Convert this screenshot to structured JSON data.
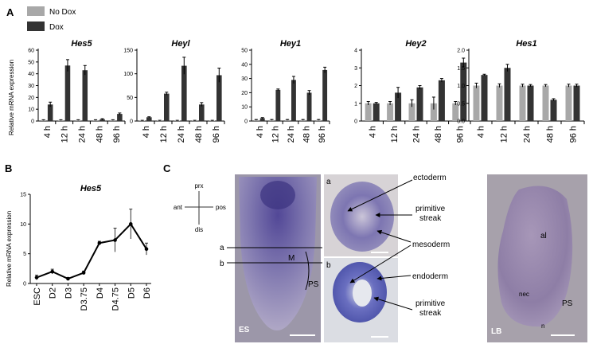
{
  "panels": {
    "a": "A",
    "b": "B",
    "c": "C"
  },
  "legend": [
    {
      "label": "No Dox",
      "color": "#a8a8a8"
    },
    {
      "label": "Dox",
      "color": "#333333"
    }
  ],
  "colors": {
    "nodox": "#a8a8a8",
    "dox": "#333333"
  },
  "chart_data": [
    {
      "type": "bar",
      "title": "Hes5",
      "ylabel": "Relative mRNA expression",
      "categories": [
        "4 h",
        "12 h",
        "24 h",
        "48 h",
        "96 h"
      ],
      "ylim": [
        0,
        60
      ],
      "yticks": [
        0,
        10,
        20,
        30,
        40,
        50,
        60
      ],
      "series": [
        {
          "name": "No Dox",
          "values": [
            0.8,
            0.8,
            0.8,
            0.8,
            0.8
          ],
          "err": [
            0.3,
            0.3,
            0.3,
            0.3,
            0.3
          ]
        },
        {
          "name": "Dox",
          "values": [
            14,
            47,
            43,
            1.5,
            6
          ],
          "err": [
            2,
            5,
            4,
            0.5,
            0.8
          ]
        }
      ]
    },
    {
      "type": "bar",
      "title": "Heyl",
      "ylabel": "",
      "categories": [
        "4 h",
        "12 h",
        "24 h",
        "48 h",
        "96 h"
      ],
      "ylim": [
        0,
        150
      ],
      "yticks": [
        0,
        50,
        100,
        150
      ],
      "series": [
        {
          "name": "No Dox",
          "values": [
            1,
            1,
            1,
            1,
            1
          ],
          "err": [
            0.5,
            0.5,
            0.5,
            0.5,
            0.5
          ]
        },
        {
          "name": "Dox",
          "values": [
            8,
            58,
            117,
            35,
            97
          ],
          "err": [
            1,
            3,
            18,
            4,
            15
          ]
        }
      ]
    },
    {
      "type": "bar",
      "title": "Hey1",
      "ylabel": "",
      "categories": [
        "4 h",
        "12 h",
        "24 h",
        "48 h",
        "96 h"
      ],
      "ylim": [
        0,
        50
      ],
      "yticks": [
        0,
        10,
        20,
        30,
        40,
        50
      ],
      "series": [
        {
          "name": "No Dox",
          "values": [
            0.8,
            0.8,
            0.8,
            0.8,
            0.8
          ],
          "err": [
            0.3,
            0.3,
            0.3,
            0.3,
            0.3
          ]
        },
        {
          "name": "Dox",
          "values": [
            2,
            22,
            29,
            20,
            36
          ],
          "err": [
            0.4,
            0.6,
            2.5,
            1.5,
            2
          ]
        }
      ]
    },
    {
      "type": "bar",
      "title": "Hey2",
      "ylabel": "",
      "categories": [
        "4 h",
        "12 h",
        "24 h",
        "48 h",
        "96 h"
      ],
      "ylim": [
        0,
        4
      ],
      "yticks": [
        0,
        1,
        2,
        3,
        4
      ],
      "series": [
        {
          "name": "No Dox",
          "values": [
            1,
            1,
            1,
            1,
            1
          ],
          "err": [
            0.1,
            0.1,
            0.2,
            0.35,
            0.1
          ]
        },
        {
          "name": "Dox",
          "values": [
            1,
            1.6,
            1.9,
            2.3,
            3.3
          ],
          "err": [
            0.05,
            0.3,
            0.1,
            0.1,
            0.25
          ]
        }
      ]
    },
    {
      "type": "bar",
      "title": "Hes1",
      "ylabel": "",
      "categories": [
        "4 h",
        "12 h",
        "24 h",
        "48 h",
        "96 h"
      ],
      "ylim": [
        0,
        2.0
      ],
      "yticks": [
        "0.0",
        "0.5",
        "1.0",
        "1.5",
        "2.0"
      ],
      "series": [
        {
          "name": "No Dox",
          "values": [
            1,
            1,
            1,
            1,
            1
          ],
          "err": [
            0.07,
            0.05,
            0.04,
            0.03,
            0.04
          ]
        },
        {
          "name": "Dox",
          "values": [
            1.3,
            1.5,
            1.0,
            0.6,
            1.0
          ],
          "err": [
            0.02,
            0.1,
            0.03,
            0.03,
            0.04
          ]
        }
      ]
    },
    {
      "type": "line",
      "title": "Hes5",
      "ylabel": "Relative mRNA expression",
      "categories": [
        "ESC",
        "D2",
        "D3",
        "D3.75",
        "D4",
        "D4.75",
        "D5",
        "D6"
      ],
      "ylim": [
        0,
        15
      ],
      "yticks": [
        0,
        5,
        10,
        15
      ],
      "series": [
        {
          "name": "",
          "values": [
            1,
            2,
            0.8,
            1.8,
            6.8,
            7.3,
            10,
            5.8
          ],
          "err": [
            0.4,
            0.4,
            0.2,
            0.3,
            0.3,
            2,
            2.5,
            1
          ]
        }
      ]
    }
  ],
  "orientation": {
    "top": "prx",
    "left": "ant",
    "right": "pos",
    "bottom": "dis"
  },
  "embryo": {
    "line_a": "a",
    "line_b": "b",
    "m": "M",
    "ps": "PS",
    "es": "ES"
  },
  "section_a": {
    "letter": "a"
  },
  "section_b": {
    "letter": "b"
  },
  "callouts": {
    "ectoderm": "ectoderm",
    "primitive_streak_1": "primitive",
    "streak_1": "streak",
    "mesoderm": "mesoderm",
    "endoderm": "endoderm",
    "primitive_streak_2": "primitive",
    "streak_2": "streak"
  },
  "late": {
    "al": "al",
    "nec": "nec",
    "n": "n",
    "ps": "PS",
    "lb": "LB"
  }
}
